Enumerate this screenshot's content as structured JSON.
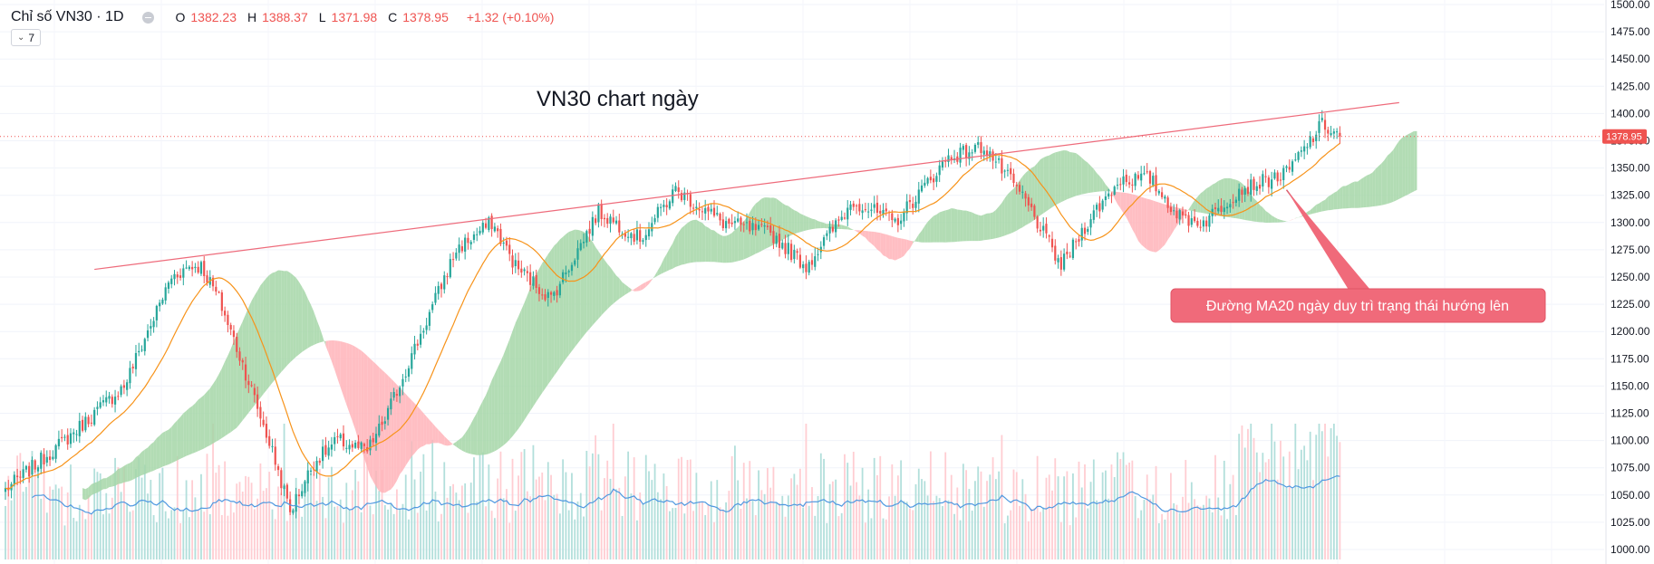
{
  "header": {
    "symbol": "Chỉ số VN30 · 1D",
    "open_label": "O",
    "open": "1382.23",
    "high_label": "H",
    "high": "1388.37",
    "low_label": "L",
    "low": "1371.98",
    "close_label": "C",
    "close": "1378.95",
    "change": "+1.32 (+0.10%)"
  },
  "indicators_toggle": {
    "chevron": "⌄",
    "count": "7"
  },
  "colors": {
    "up": "#26a69a",
    "down": "#ef5350",
    "cloud_bull": "#a5d6a7",
    "cloud_bear": "#ffb3b8",
    "ma20": "#f7931a",
    "vol_ma": "#4f98e0",
    "trendline": "#ee6b7b",
    "callout_bg": "#f06a7a"
  },
  "chart_data": {
    "type": "candlestick",
    "title": "VN30 chart ngày",
    "ylim": [
      1000,
      1500
    ],
    "y_ticks": [
      "1000.00",
      "1025.00",
      "1050.00",
      "1075.00",
      "1100.00",
      "1125.00",
      "1150.00",
      "1175.00",
      "1200.00",
      "1225.00",
      "1250.00",
      "1275.00",
      "1300.00",
      "1325.00",
      "1350.00",
      "1375.00",
      "1400.00",
      "1425.00",
      "1450.00",
      "1475.00",
      "1500.00"
    ],
    "last_price": "1378.95",
    "series": [
      {
        "name": "Price (daily close, approx.)",
        "keypoints": [
          [
            0,
            1055
          ],
          [
            20,
            1100
          ],
          [
            40,
            1150
          ],
          [
            56,
            1250
          ],
          [
            62,
            1260
          ],
          [
            66,
            1260
          ],
          [
            72,
            1230
          ],
          [
            80,
            1170
          ],
          [
            90,
            1090
          ],
          [
            96,
            1035
          ],
          [
            104,
            1080
          ],
          [
            112,
            1100
          ],
          [
            122,
            1090
          ],
          [
            128,
            1120
          ],
          [
            142,
            1210
          ],
          [
            152,
            1275
          ],
          [
            164,
            1300
          ],
          [
            172,
            1260
          ],
          [
            184,
            1230
          ],
          [
            200,
            1310
          ],
          [
            214,
            1285
          ],
          [
            226,
            1330
          ],
          [
            242,
            1300
          ],
          [
            258,
            1290
          ],
          [
            270,
            1260
          ],
          [
            286,
            1320
          ],
          [
            300,
            1300
          ],
          [
            318,
            1360
          ],
          [
            330,
            1370
          ],
          [
            344,
            1320
          ],
          [
            356,
            1260
          ],
          [
            366,
            1305
          ],
          [
            376,
            1340
          ],
          [
            386,
            1340
          ],
          [
            396,
            1305
          ],
          [
            404,
            1300
          ],
          [
            416,
            1330
          ],
          [
            432,
            1345
          ],
          [
            444,
            1390
          ],
          [
            450,
            1378.95
          ]
        ]
      },
      {
        "name": "MA20"
      },
      {
        "name": "Ichimoku cloud"
      },
      {
        "name": "Volume"
      },
      {
        "name": "Volume MA"
      }
    ],
    "annotations": [
      {
        "type": "trendline",
        "from": [
          30,
          1257
        ],
        "to": [
          470,
          1410
        ]
      },
      {
        "type": "callout",
        "text": "Đường MA20 ngày duy trì trạng thái hướng lên",
        "points_to": [
          432,
          1330
        ]
      }
    ]
  }
}
